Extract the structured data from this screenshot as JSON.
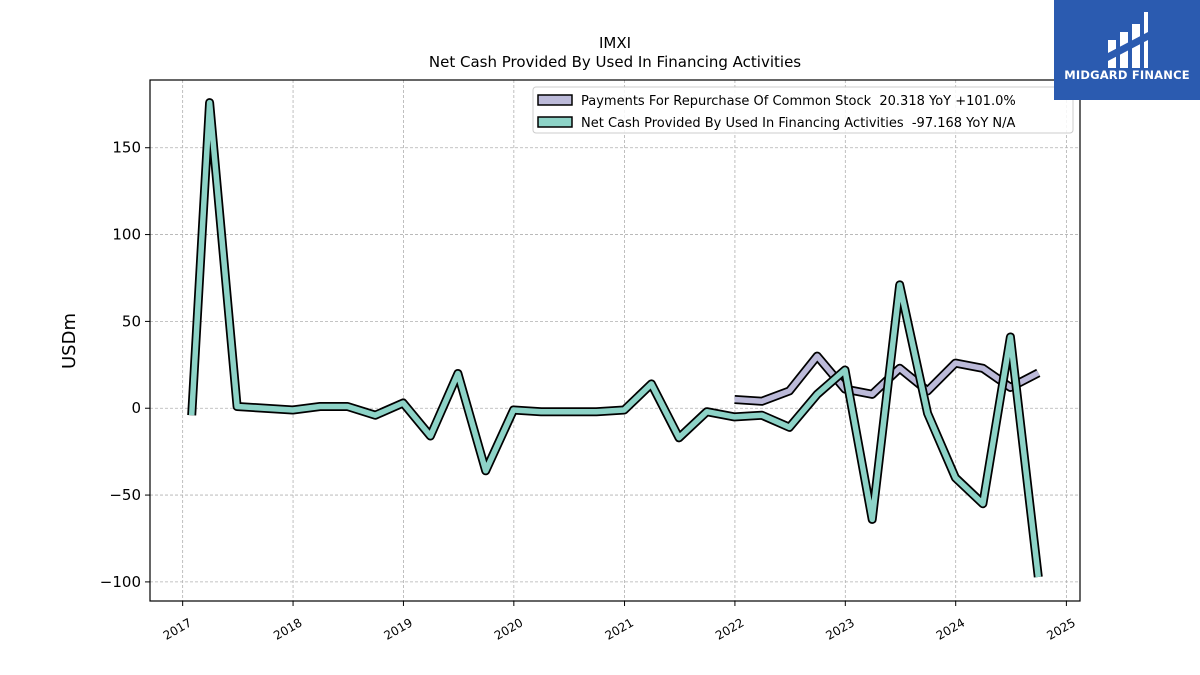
{
  "chart_data": {
    "type": "line",
    "title": "IMXI",
    "subtitle": "Net Cash Provided By Used In Financing Activities",
    "ylabel": "USDm",
    "xlabel": "",
    "xlim": [
      "2016-09-15",
      "2025-02-15"
    ],
    "ylim": [
      -111,
      189
    ],
    "x_ticks": [
      "2017",
      "2018",
      "2019",
      "2020",
      "2021",
      "2022",
      "2023",
      "2024",
      "2025"
    ],
    "y_ticks": [
      -100,
      -50,
      0,
      50,
      100,
      150
    ],
    "grid": true,
    "legend_position": "top-right",
    "series": [
      {
        "name": "Payments For Repurchase Of Common Stock  20.318 YoY +101.0%",
        "color": "#bcbad9",
        "points": [
          [
            "2021-12-31",
            5
          ],
          [
            "2022-03-31",
            4
          ],
          [
            "2022-06-30",
            10
          ],
          [
            "2022-09-30",
            30
          ],
          [
            "2022-12-31",
            11
          ],
          [
            "2023-03-31",
            8
          ],
          [
            "2023-06-30",
            23
          ],
          [
            "2023-09-30",
            10
          ],
          [
            "2023-12-31",
            26
          ],
          [
            "2024-03-31",
            23
          ],
          [
            "2024-06-30",
            12
          ],
          [
            "2024-09-30",
            20.318
          ]
        ]
      },
      {
        "name": "Net Cash Provided By Used In Financing Activities  -97.168 YoY N/A",
        "color": "#8dd3c7",
        "points": [
          [
            "2017-01-31",
            -4
          ],
          [
            "2017-03-31",
            176
          ],
          [
            "2017-06-30",
            1
          ],
          [
            "2017-12-31",
            -1
          ],
          [
            "2018-03-31",
            1
          ],
          [
            "2018-06-30",
            1
          ],
          [
            "2018-09-30",
            -4
          ],
          [
            "2018-12-31",
            3
          ],
          [
            "2019-03-31",
            -16
          ],
          [
            "2019-06-30",
            20
          ],
          [
            "2019-09-30",
            -36
          ],
          [
            "2019-12-31",
            -1
          ],
          [
            "2020-03-31",
            -2
          ],
          [
            "2020-06-30",
            -2
          ],
          [
            "2020-09-30",
            -2
          ],
          [
            "2020-12-31",
            -1
          ],
          [
            "2021-03-31",
            14
          ],
          [
            "2021-06-30",
            -17
          ],
          [
            "2021-09-30",
            -2
          ],
          [
            "2021-12-31",
            -5
          ],
          [
            "2022-03-31",
            -4
          ],
          [
            "2022-06-30",
            -11
          ],
          [
            "2022-09-30",
            8
          ],
          [
            "2022-12-31",
            22
          ],
          [
            "2023-03-31",
            -64
          ],
          [
            "2023-06-30",
            71
          ],
          [
            "2023-09-30",
            -3
          ],
          [
            "2023-12-31",
            -40
          ],
          [
            "2024-03-31",
            -55
          ],
          [
            "2024-06-30",
            41
          ],
          [
            "2024-09-30",
            -97.168
          ]
        ]
      }
    ]
  },
  "brand": {
    "name": "MIDGARD FINANCE",
    "background": "#2b5bb0"
  }
}
